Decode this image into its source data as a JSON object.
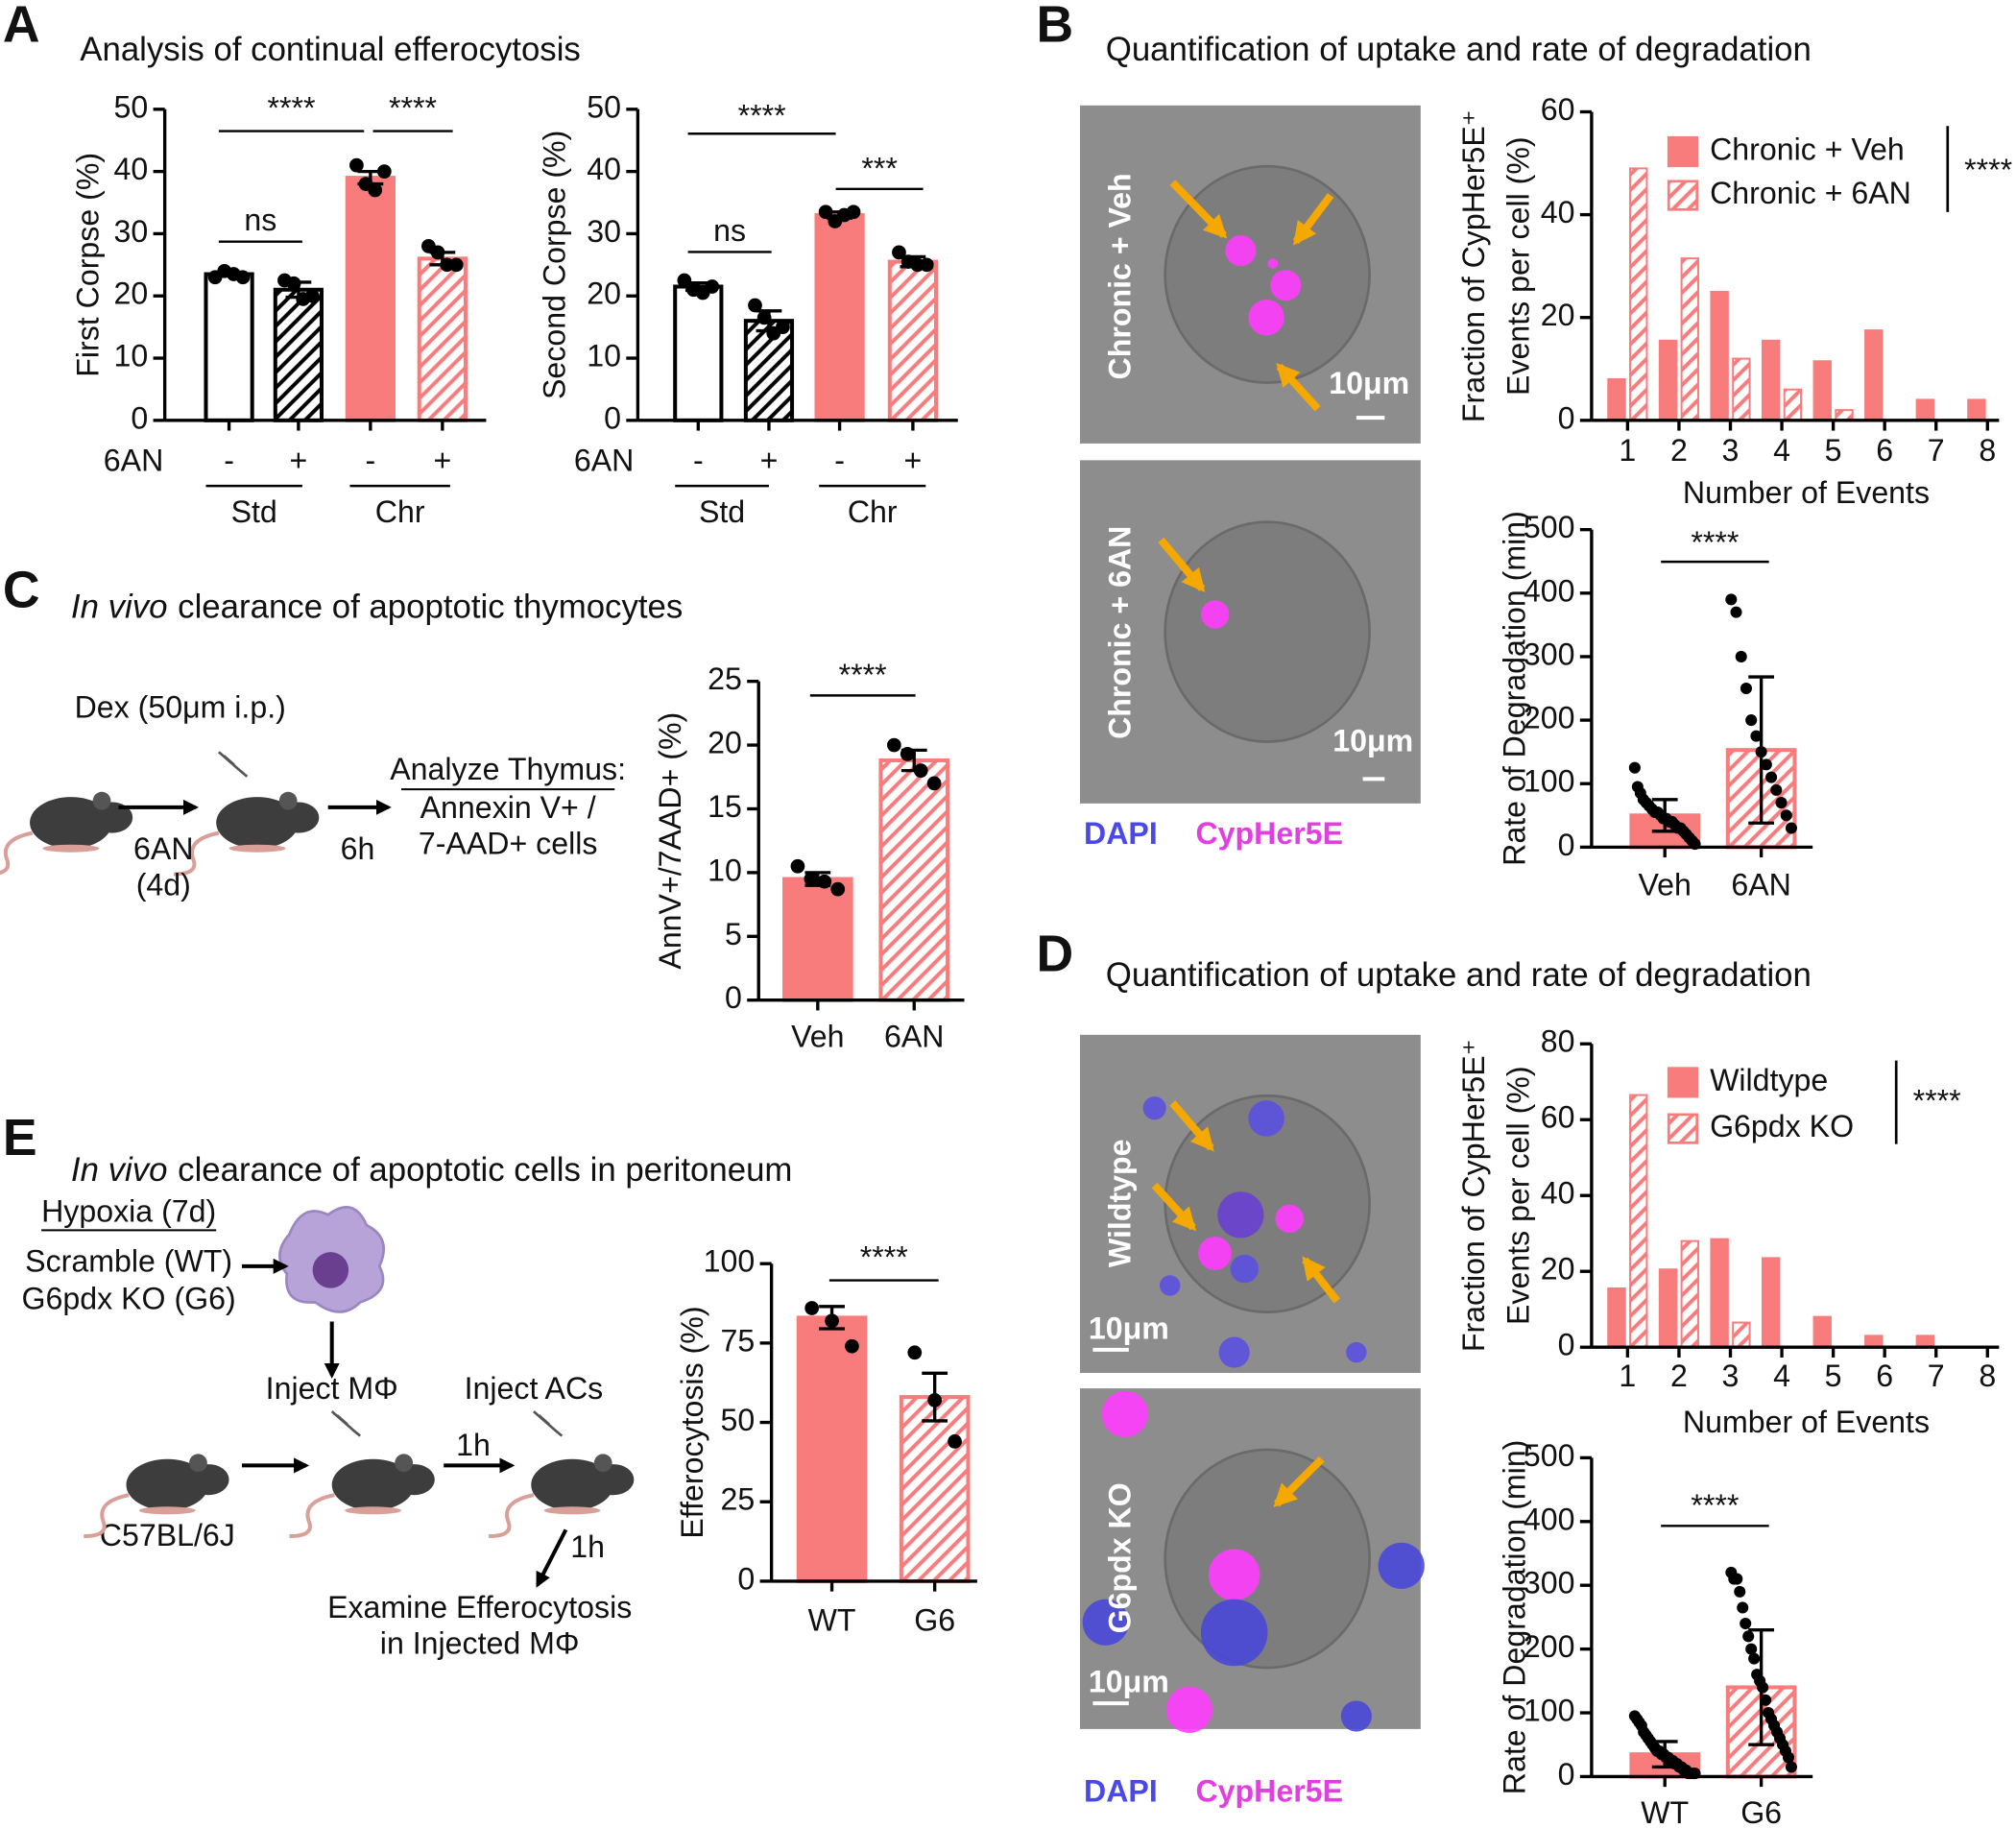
{
  "panels": [
    {
      "label": "A",
      "title": "Analysis of continual efferocytosis"
    },
    {
      "label": "B",
      "title": "Quantification of uptake and rate of degradation"
    },
    {
      "label": "C",
      "title": {
        "italic": "In vivo",
        "rest": "clearance of apoptotic thymocytes"
      }
    },
    {
      "label": "D",
      "title": "Quantification of uptake and rate of degradation"
    },
    {
      "label": "E",
      "title": {
        "italic": "In vivo",
        "rest": "clearance of apoptotic cells in peritoneum"
      }
    }
  ],
  "micrographs": [
    {
      "label": "Chronic + Veh",
      "scale": "10μm"
    },
    {
      "label": "Chronic + 6AN",
      "scale": "10μm"
    },
    {
      "label": "Wildtype",
      "scale": "10μm"
    },
    {
      "label": "G6pdx KO",
      "scale": "10μm"
    }
  ],
  "stain_legends": [
    {
      "dapi": "DAPI",
      "cypher": "CypHer5E"
    },
    {
      "dapi": "DAPI",
      "cypher": "CypHer5E"
    }
  ],
  "schematic_c": {
    "treatment": "Dex (50μm i.p.)",
    "drug": "6AN",
    "duration": "(4d)",
    "wait": "6h",
    "analysis": [
      "Analyze Thymus:",
      "Annexin V+ /",
      "7-AAD+ cells"
    ]
  },
  "schematic_e": {
    "conditions": [
      "Hypoxia (7d)",
      "Scramble (WT)",
      "G6pdx KO (G6)"
    ],
    "step1": "Inject MΦ",
    "step2": "Inject ACs",
    "wait1": "1h",
    "wait2": "1h",
    "strain": "C57BL/6J",
    "readout": [
      "Examine Efferocytosis",
      "in Injected MΦ"
    ]
  },
  "chart_data": [
    {
      "type": "bar",
      "ylabel": "First Corpse (%)",
      "row_label": "6AN",
      "categories": [
        "-",
        "+",
        "-",
        "+"
      ],
      "groups": [
        "Std",
        "Chr"
      ],
      "values": [
        23.5,
        21,
        39,
        26
      ],
      "errors": [
        0.3,
        1.2,
        1,
        1
      ],
      "points": [
        [
          23,
          24,
          23.5,
          23
        ],
        [
          22.5,
          22,
          19.5,
          20
        ],
        [
          41,
          38,
          37,
          40
        ],
        [
          28,
          27,
          25,
          25
        ]
      ],
      "colors": [
        "#ffffff",
        "#000000",
        "#f87c7c",
        "#f87c7c"
      ],
      "edge_colors": [
        "#000000",
        "#000000",
        "#f87c7c",
        "#f87c7c"
      ],
      "hatched": [
        false,
        true,
        false,
        true
      ],
      "ylim": [
        0,
        50
      ],
      "yticks": [
        0,
        10,
        20,
        30,
        40,
        50
      ],
      "significance": [
        "****",
        "****",
        "ns"
      ]
    },
    {
      "type": "bar",
      "ylabel": "Second Corpse (%)",
      "row_label": "6AN",
      "categories": [
        "-",
        "+",
        "-",
        "+"
      ],
      "groups": [
        "Std",
        "Chr"
      ],
      "values": [
        21.5,
        16,
        33,
        25.5
      ],
      "errors": [
        0.6,
        1.6,
        0.5,
        0.8
      ],
      "points": [
        [
          22.5,
          21,
          20.5,
          21.5
        ],
        [
          18.5,
          16.5,
          14,
          15
        ],
        [
          33.5,
          32,
          33,
          33.5
        ],
        [
          27,
          25.5,
          25,
          25
        ]
      ],
      "colors": [
        "#ffffff",
        "#000000",
        "#f87c7c",
        "#f87c7c"
      ],
      "edge_colors": [
        "#000000",
        "#000000",
        "#f87c7c",
        "#f87c7c"
      ],
      "hatched": [
        false,
        true,
        false,
        true
      ],
      "ylim": [
        0,
        50
      ],
      "yticks": [
        0,
        10,
        20,
        30,
        40,
        50
      ],
      "significance": [
        "****",
        "***",
        "ns"
      ]
    },
    {
      "type": "grouped_bar",
      "ylabel": [
        "Fraction of CypHer5E⁺",
        "Events per cell (%)"
      ],
      "xlabel": "Number of Events",
      "categories": [
        "1",
        "2",
        "3",
        "4",
        "5",
        "6",
        "7",
        "8"
      ],
      "series": [
        {
          "name": "Chronic + Veh",
          "color": "#f87c7c",
          "hatched": false,
          "values": [
            8,
            15.5,
            25,
            15.5,
            11.5,
            17.5,
            4,
            4
          ]
        },
        {
          "name": "Chronic + 6AN",
          "color": "#f87c7c",
          "hatched": true,
          "values": [
            49,
            31.5,
            12,
            6,
            2,
            0,
            0,
            0
          ]
        }
      ],
      "ylim": [
        0,
        60
      ],
      "yticks": [
        0,
        20,
        40,
        60
      ],
      "significance": [
        "****"
      ]
    },
    {
      "type": "bar",
      "ylabel": "Rate of Degradation (min)",
      "categories": [
        "Veh",
        "6AN"
      ],
      "values": [
        50,
        153
      ],
      "errors": [
        25,
        115
      ],
      "points": [
        [
          125,
          95,
          85,
          75,
          70,
          65,
          60,
          55,
          55,
          50,
          45,
          45,
          40,
          40,
          35,
          30,
          30,
          25,
          20,
          15,
          10,
          5
        ],
        [
          390,
          370,
          300,
          250,
          200,
          175,
          150,
          130,
          110,
          90,
          70,
          50,
          30
        ]
      ],
      "colors": [
        "#f87c7c",
        "#f87c7c"
      ],
      "edge_colors": [
        "#f87c7c",
        "#f87c7c"
      ],
      "hatched": [
        false,
        true
      ],
      "ylim": [
        0,
        500
      ],
      "yticks": [
        0,
        100,
        200,
        300,
        400,
        500
      ],
      "significance": [
        "****"
      ]
    },
    {
      "type": "bar",
      "ylabel": "AnnV+/7AAD+ (%)",
      "categories": [
        "Veh",
        "6AN"
      ],
      "values": [
        9.5,
        18.8
      ],
      "errors": [
        0.5,
        0.8
      ],
      "points": [
        [
          10.5,
          9.5,
          9.3,
          8.7
        ],
        [
          20,
          19.3,
          18,
          17
        ]
      ],
      "colors": [
        "#f87c7c",
        "#f87c7c"
      ],
      "edge_colors": [
        "#f87c7c",
        "#f87c7c"
      ],
      "hatched": [
        false,
        true
      ],
      "ylim": [
        0,
        25
      ],
      "yticks": [
        0,
        5,
        10,
        15,
        20,
        25
      ],
      "significance": [
        "****"
      ]
    },
    {
      "type": "grouped_bar",
      "ylabel": [
        "Fraction of CypHer5E⁺",
        "Events per cell (%)"
      ],
      "xlabel": "Number of Events",
      "categories": [
        "1",
        "2",
        "3",
        "4",
        "5",
        "6",
        "7",
        "8"
      ],
      "series": [
        {
          "name": "Wildtype",
          "color": "#f87c7c",
          "hatched": false,
          "values": [
            15.5,
            20.5,
            28.5,
            23.5,
            8,
            3,
            3,
            0
          ]
        },
        {
          "name": "G6pdx KO",
          "color": "#f87c7c",
          "hatched": true,
          "values": [
            66.5,
            28,
            6.5,
            0,
            0,
            0,
            0,
            0
          ]
        }
      ],
      "ylim": [
        0,
        80
      ],
      "yticks": [
        0,
        20,
        40,
        60,
        80
      ],
      "significance": [
        "****"
      ]
    },
    {
      "type": "bar",
      "ylabel": "Rate of Degradation (min)",
      "categories": [
        "WT",
        "G6"
      ],
      "values": [
        35,
        140
      ],
      "errors": [
        20,
        90
      ],
      "points": [
        [
          95,
          90,
          85,
          80,
          70,
          65,
          60,
          55,
          50,
          45,
          40,
          40,
          35,
          35,
          30,
          30,
          25,
          25,
          20,
          20,
          15,
          15,
          10,
          10,
          5,
          5,
          5,
          5
        ],
        [
          320,
          310,
          310,
          290,
          265,
          240,
          220,
          200,
          185,
          160,
          150,
          140,
          120,
          100,
          90,
          80,
          70,
          60,
          50,
          40,
          30,
          15
        ]
      ],
      "colors": [
        "#f87c7c",
        "#f87c7c"
      ],
      "edge_colors": [
        "#f87c7c",
        "#f87c7c"
      ],
      "hatched": [
        false,
        true
      ],
      "ylim": [
        0,
        500
      ],
      "yticks": [
        0,
        100,
        200,
        300,
        400,
        500
      ],
      "significance": [
        "****"
      ]
    },
    {
      "type": "bar",
      "ylabel": "Efferocytosis (%)",
      "categories": [
        "WT",
        "G6"
      ],
      "values": [
        83,
        58
      ],
      "errors": [
        3.5,
        7.5
      ],
      "points": [
        [
          86,
          82,
          74
        ],
        [
          72,
          57,
          44
        ]
      ],
      "colors": [
        "#f87c7c",
        "#f87c7c"
      ],
      "edge_colors": [
        "#f87c7c",
        "#f87c7c"
      ],
      "hatched": [
        false,
        true
      ],
      "ylim": [
        0,
        100
      ],
      "yticks": [
        0,
        25,
        50,
        75,
        100
      ],
      "significance": [
        "****"
      ]
    }
  ]
}
